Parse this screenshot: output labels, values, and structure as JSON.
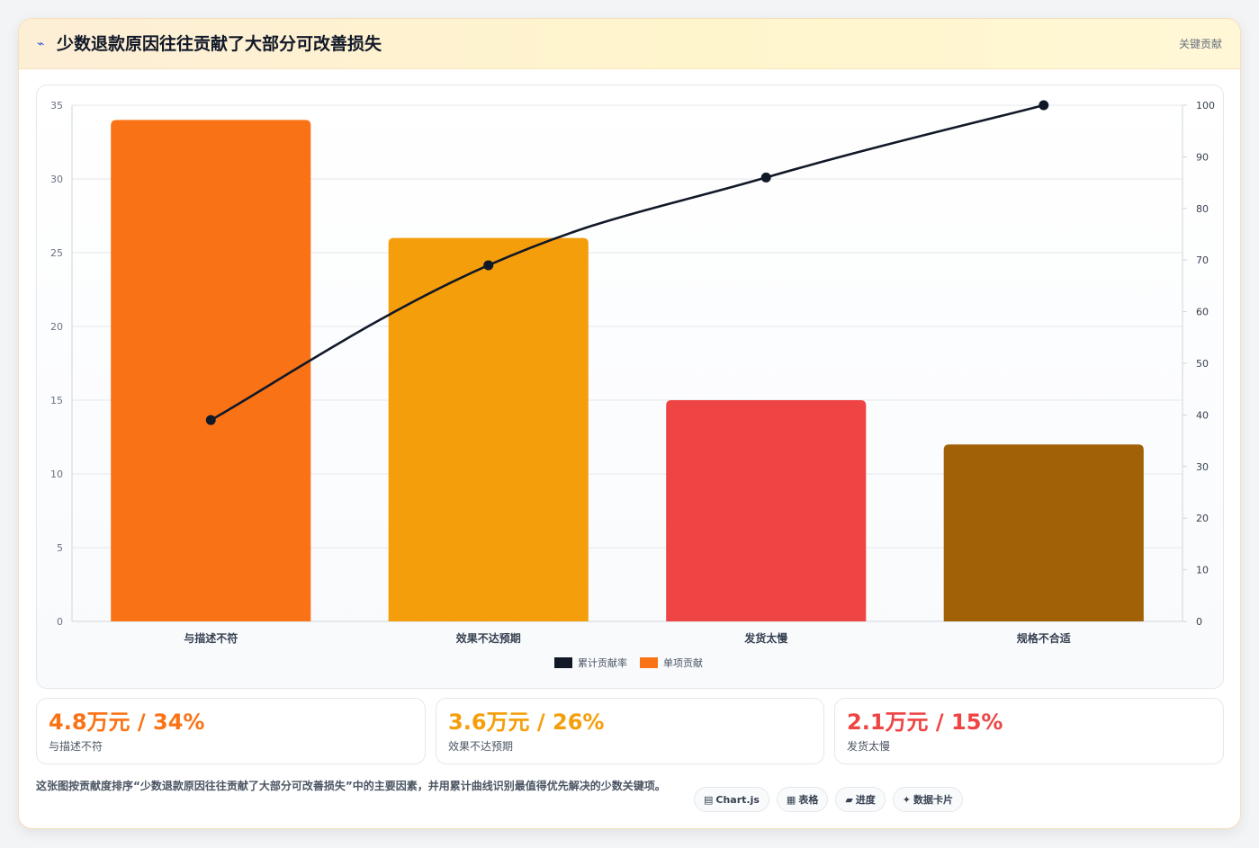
{
  "header": {
    "icon": "⌁",
    "title": "少数退款原因往往贡献了大部分可改善损失",
    "badge": "关键贡献"
  },
  "colors": {
    "bars": [
      "#f97316",
      "#f59e0b",
      "#ef4444",
      "#a16207"
    ],
    "line": "#111827",
    "grid": "#e5e7eb"
  },
  "chart_data": {
    "type": "bar",
    "categories": [
      "与描述不符",
      "效果不达预期",
      "发货太慢",
      "规格不合适"
    ],
    "series": [
      {
        "name": "单项贡献",
        "type": "bar",
        "axis": "left",
        "values": [
          34,
          26,
          15,
          12
        ]
      },
      {
        "name": "累计贡献率",
        "type": "line",
        "axis": "right",
        "values": [
          39,
          69,
          86,
          100
        ]
      }
    ],
    "y_left": {
      "min": 0,
      "max": 35,
      "ticks": [
        0,
        5,
        10,
        15,
        20,
        25,
        30,
        35
      ]
    },
    "y_right": {
      "min": 0,
      "max": 100,
      "ticks": [
        0,
        10,
        20,
        30,
        40,
        50,
        60,
        70,
        80,
        90,
        100
      ]
    },
    "legend": {
      "placement": "bottom",
      "entries": [
        "累计贡献率",
        "单项贡献"
      ]
    },
    "grid": true
  },
  "stats": [
    {
      "value": "4.8万元 / 34%",
      "label": "与描述不符",
      "color": "#f97316"
    },
    {
      "value": "3.6万元 / 26%",
      "label": "效果不达预期",
      "color": "#f59e0b"
    },
    {
      "value": "2.1万元 / 15%",
      "label": "发货太慢",
      "color": "#ef4444"
    }
  ],
  "footer": {
    "description": "这张图按贡献度排序“少数退款原因往往贡献了大部分可改善损失”中的主要因素，并用累计曲线识别最值得优先解决的少数关键项。",
    "tags": [
      {
        "icon": "▤",
        "icon_name": "chart-icon",
        "label": "Chart.js"
      },
      {
        "icon": "▦",
        "icon_name": "table-icon",
        "label": "表格"
      },
      {
        "icon": "▰",
        "icon_name": "progress-icon",
        "label": "进度"
      },
      {
        "icon": "✦",
        "icon_name": "sparkle-icon",
        "label": "数据卡片"
      }
    ]
  }
}
